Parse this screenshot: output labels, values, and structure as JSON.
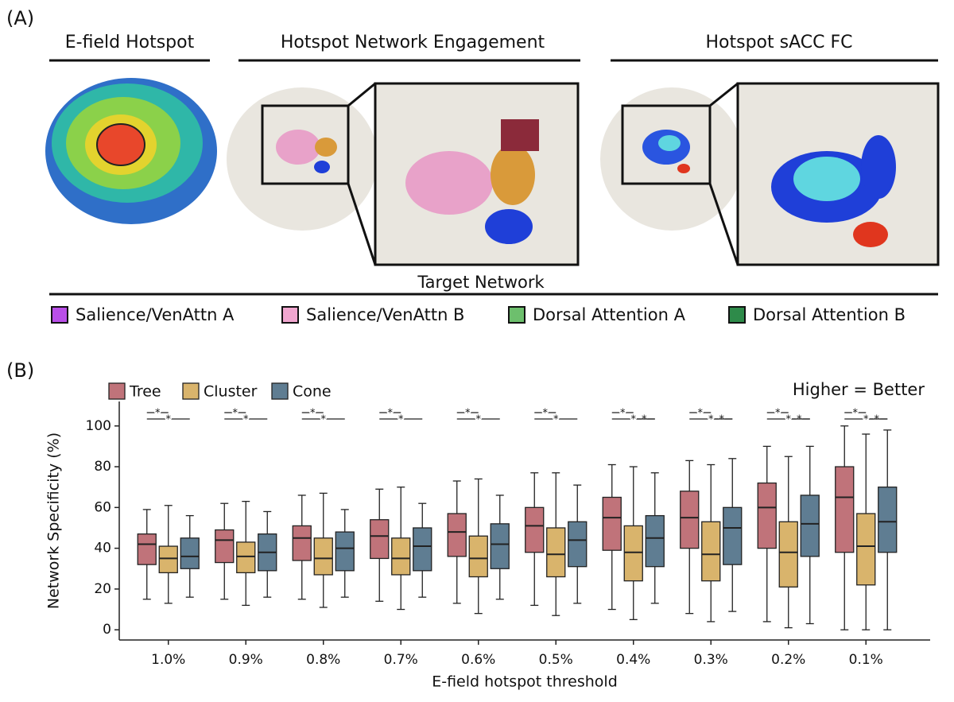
{
  "panel_a": {
    "label": "(A)",
    "titles": [
      "E-field Hotspot",
      "Hotspot Network Engagement",
      "Hotspot sACC FC"
    ],
    "legend_title": "Target Network",
    "legend": [
      {
        "name": "Salience/VenAttn A",
        "color": "#b94fe8"
      },
      {
        "name": "Salience/VenAttn B",
        "color": "#f0a6cf"
      },
      {
        "name": "Dorsal Attention A",
        "color": "#6dbf6d"
      },
      {
        "name": "Dorsal Attention B",
        "color": "#2e8b4a"
      }
    ]
  },
  "chart_data": {
    "type": "box",
    "panel_label": "(B)",
    "annotation": "Higher = Better",
    "x_label": "E-field hotspot threshold",
    "y_label": "Network Specificity (%)",
    "categories": [
      "1.0%",
      "0.9%",
      "0.8%",
      "0.7%",
      "0.6%",
      "0.5%",
      "0.4%",
      "0.3%",
      "0.2%",
      "0.1%"
    ],
    "ylim": [
      -5,
      112
    ],
    "yticks": [
      0,
      20,
      40,
      60,
      80,
      100
    ],
    "series": [
      {
        "name": "Tree",
        "color": "#c0737a",
        "low": [
          15,
          15,
          15,
          14,
          13,
          12,
          10,
          8,
          4,
          0
        ],
        "q1": [
          32,
          33,
          34,
          35,
          36,
          38,
          39,
          40,
          40,
          38
        ],
        "median": [
          42,
          44,
          45,
          46,
          48,
          51,
          55,
          55,
          60,
          65
        ],
        "q3": [
          47,
          49,
          51,
          54,
          57,
          60,
          65,
          68,
          72,
          80
        ],
        "high": [
          59,
          62,
          66,
          69,
          73,
          77,
          81,
          83,
          90,
          100
        ]
      },
      {
        "name": "Cluster",
        "color": "#d9b46c",
        "low": [
          13,
          12,
          11,
          10,
          8,
          7,
          5,
          4,
          1,
          0
        ],
        "q1": [
          28,
          28,
          27,
          27,
          26,
          26,
          24,
          24,
          21,
          22
        ],
        "median": [
          35,
          36,
          35,
          35,
          35,
          37,
          38,
          37,
          38,
          41
        ],
        "q3": [
          41,
          43,
          45,
          45,
          46,
          50,
          51,
          53,
          53,
          57
        ],
        "high": [
          61,
          63,
          67,
          70,
          74,
          77,
          80,
          81,
          85,
          96
        ]
      },
      {
        "name": "Cone",
        "color": "#5f7d92",
        "low": [
          16,
          16,
          16,
          16,
          15,
          13,
          13,
          9,
          3,
          0
        ],
        "q1": [
          30,
          29,
          29,
          29,
          30,
          31,
          31,
          32,
          36,
          38
        ],
        "median": [
          36,
          38,
          40,
          41,
          42,
          44,
          45,
          50,
          52,
          53
        ],
        "q3": [
          45,
          47,
          48,
          50,
          52,
          53,
          56,
          60,
          66,
          70
        ],
        "high": [
          56,
          58,
          59,
          62,
          66,
          71,
          77,
          84,
          90,
          98
        ]
      }
    ],
    "significance": [
      {
        "category": "1.0%",
        "pair": [
          "Tree",
          "Cluster"
        ],
        "label": "*"
      },
      {
        "category": "1.0%",
        "pair": [
          "Tree",
          "Cone"
        ],
        "label": "*"
      },
      {
        "category": "0.9%",
        "pair": [
          "Tree",
          "Cluster"
        ],
        "label": "*"
      },
      {
        "category": "0.9%",
        "pair": [
          "Tree",
          "Cone"
        ],
        "label": "*"
      },
      {
        "category": "0.8%",
        "pair": [
          "Tree",
          "Cluster"
        ],
        "label": "*"
      },
      {
        "category": "0.8%",
        "pair": [
          "Tree",
          "Cone"
        ],
        "label": "*"
      },
      {
        "category": "0.7%",
        "pair": [
          "Tree",
          "Cluster"
        ],
        "label": "*"
      },
      {
        "category": "0.7%",
        "pair": [
          "Tree",
          "Cone"
        ],
        "label": "*"
      },
      {
        "category": "0.6%",
        "pair": [
          "Tree",
          "Cluster"
        ],
        "label": "*"
      },
      {
        "category": "0.6%",
        "pair": [
          "Tree",
          "Cone"
        ],
        "label": "*"
      },
      {
        "category": "0.5%",
        "pair": [
          "Tree",
          "Cluster"
        ],
        "label": "*"
      },
      {
        "category": "0.5%",
        "pair": [
          "Tree",
          "Cone"
        ],
        "label": "*"
      },
      {
        "category": "0.4%",
        "pair": [
          "Tree",
          "Cluster"
        ],
        "label": "*"
      },
      {
        "category": "0.4%",
        "pair": [
          "Cluster",
          "Cone"
        ],
        "label": "*"
      },
      {
        "category": "0.4%",
        "pair": [
          "Tree",
          "Cone"
        ],
        "label": "*"
      },
      {
        "category": "0.3%",
        "pair": [
          "Tree",
          "Cluster"
        ],
        "label": "*"
      },
      {
        "category": "0.3%",
        "pair": [
          "Cluster",
          "Cone"
        ],
        "label": "*"
      },
      {
        "category": "0.3%",
        "pair": [
          "Tree",
          "Cone"
        ],
        "label": "*"
      },
      {
        "category": "0.2%",
        "pair": [
          "Tree",
          "Cluster"
        ],
        "label": "*"
      },
      {
        "category": "0.2%",
        "pair": [
          "Cluster",
          "Cone"
        ],
        "label": "*"
      },
      {
        "category": "0.2%",
        "pair": [
          "Tree",
          "Cone"
        ],
        "label": "*"
      },
      {
        "category": "0.1%",
        "pair": [
          "Tree",
          "Cluster"
        ],
        "label": "*"
      },
      {
        "category": "0.1%",
        "pair": [
          "Cluster",
          "Cone"
        ],
        "label": "*"
      },
      {
        "category": "0.1%",
        "pair": [
          "Tree",
          "Cone"
        ],
        "label": "*"
      }
    ]
  }
}
